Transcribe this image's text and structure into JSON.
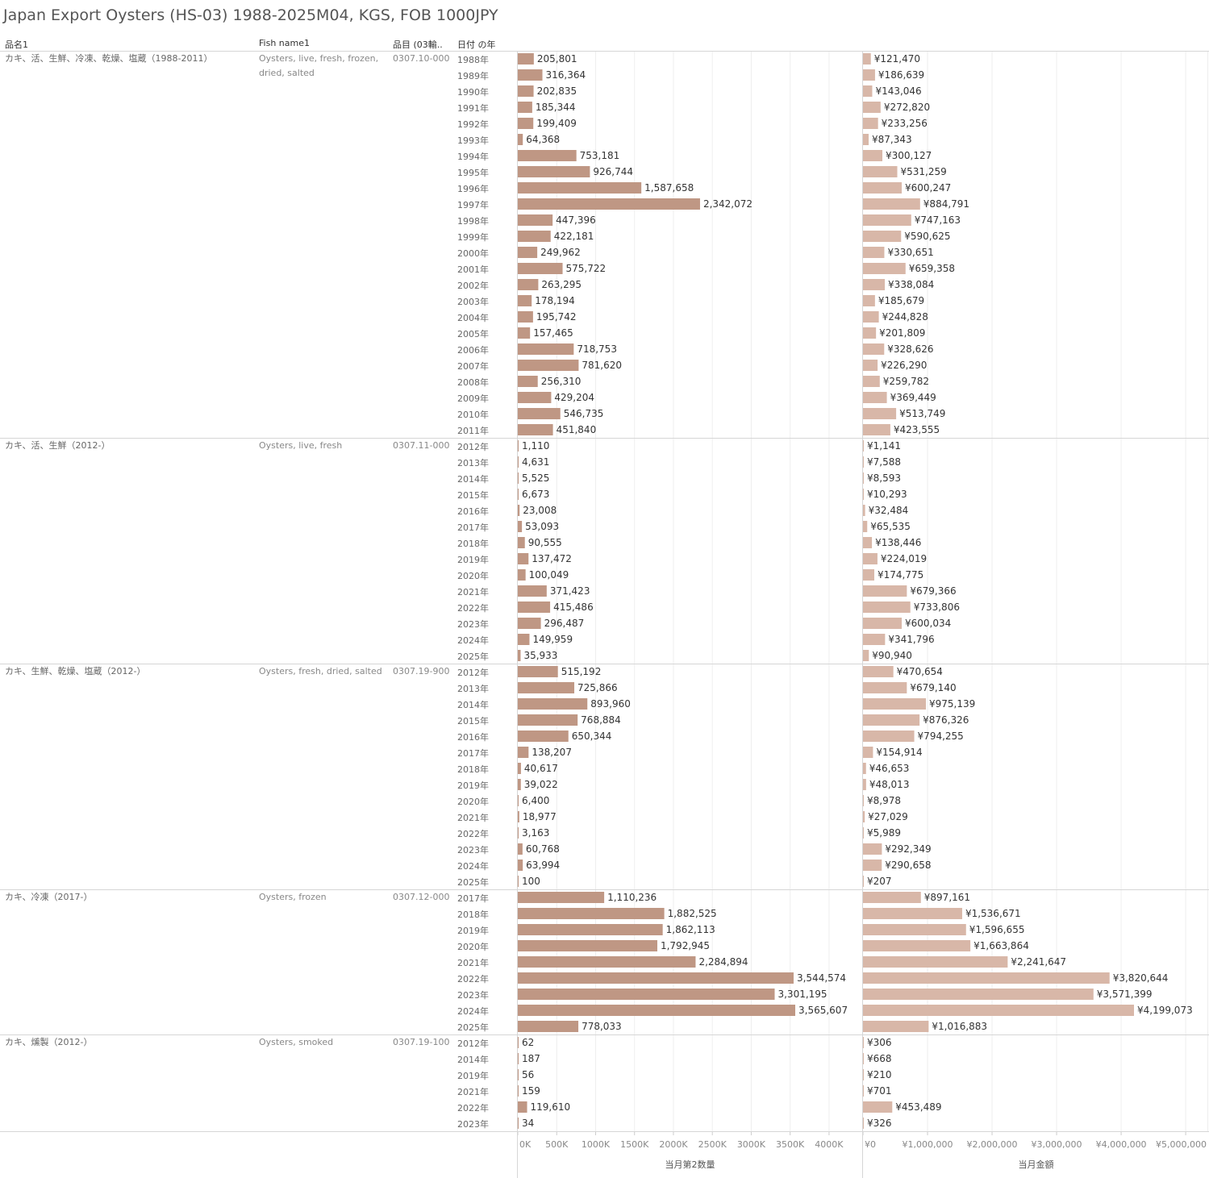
{
  "title": "Japan Export Oysters (HS-03) 1988-2025M04, KGS, FOB 1000JPY",
  "headers": {
    "col1": "品名1",
    "col2": "Fish name1",
    "col3": "品目 (03輸..",
    "col4": "日付 の年"
  },
  "colors": {
    "qty_bar": "#bf9784",
    "val_bar": "#d8b7a8",
    "grid": "#eeeeee",
    "divider": "#d6d6d6"
  },
  "chart_data": {
    "type": "bar",
    "orientation": "horizontal",
    "measures": [
      {
        "name": "当月第2数量",
        "axis_ticks": [
          "0K",
          "500K",
          "1000K",
          "1500K",
          "2000K",
          "2500K",
          "3000K",
          "3500K",
          "4000K"
        ],
        "xlim": [
          0,
          4500000
        ]
      },
      {
        "name": "当月金額",
        "axis_ticks": [
          "¥0",
          "¥1,000,000",
          "¥2,000,000",
          "¥3,000,000",
          "¥4,000,000",
          "¥5,000,000"
        ],
        "xlim": [
          0,
          5100000
        ]
      }
    ],
    "groups": [
      {
        "name_jp": "カキ、活、生鮮、冷凍、乾燥、塩蔵（1988-2011）",
        "name_en": "Oysters, live, fresh, frozen, dried, salted",
        "code": "0307.10-000",
        "rows": [
          {
            "year": "1988年",
            "qty": 205801,
            "qty_label": "205,801",
            "val": 121470,
            "val_label": "¥121,470"
          },
          {
            "year": "1989年",
            "qty": 316364,
            "qty_label": "316,364",
            "val": 186639,
            "val_label": "¥186,639"
          },
          {
            "year": "1990年",
            "qty": 202835,
            "qty_label": "202,835",
            "val": 143046,
            "val_label": "¥143,046"
          },
          {
            "year": "1991年",
            "qty": 185344,
            "qty_label": "185,344",
            "val": 272820,
            "val_label": "¥272,820"
          },
          {
            "year": "1992年",
            "qty": 199409,
            "qty_label": "199,409",
            "val": 233256,
            "val_label": "¥233,256"
          },
          {
            "year": "1993年",
            "qty": 64368,
            "qty_label": "64,368",
            "val": 87343,
            "val_label": "¥87,343"
          },
          {
            "year": "1994年",
            "qty": 753181,
            "qty_label": "753,181",
            "val": 300127,
            "val_label": "¥300,127"
          },
          {
            "year": "1995年",
            "qty": 926744,
            "qty_label": "926,744",
            "val": 531259,
            "val_label": "¥531,259"
          },
          {
            "year": "1996年",
            "qty": 1587658,
            "qty_label": "1,587,658",
            "val": 600247,
            "val_label": "¥600,247"
          },
          {
            "year": "1997年",
            "qty": 2342072,
            "qty_label": "2,342,072",
            "val": 884791,
            "val_label": "¥884,791"
          },
          {
            "year": "1998年",
            "qty": 447396,
            "qty_label": "447,396",
            "val": 747163,
            "val_label": "¥747,163"
          },
          {
            "year": "1999年",
            "qty": 422181,
            "qty_label": "422,181",
            "val": 590625,
            "val_label": "¥590,625"
          },
          {
            "year": "2000年",
            "qty": 249962,
            "qty_label": "249,962",
            "val": 330651,
            "val_label": "¥330,651"
          },
          {
            "year": "2001年",
            "qty": 575722,
            "qty_label": "575,722",
            "val": 659358,
            "val_label": "¥659,358"
          },
          {
            "year": "2002年",
            "qty": 263295,
            "qty_label": "263,295",
            "val": 338084,
            "val_label": "¥338,084"
          },
          {
            "year": "2003年",
            "qty": 178194,
            "qty_label": "178,194",
            "val": 185679,
            "val_label": "¥185,679"
          },
          {
            "year": "2004年",
            "qty": 195742,
            "qty_label": "195,742",
            "val": 244828,
            "val_label": "¥244,828"
          },
          {
            "year": "2005年",
            "qty": 157465,
            "qty_label": "157,465",
            "val": 201809,
            "val_label": "¥201,809"
          },
          {
            "year": "2006年",
            "qty": 718753,
            "qty_label": "718,753",
            "val": 328626,
            "val_label": "¥328,626"
          },
          {
            "year": "2007年",
            "qty": 781620,
            "qty_label": "781,620",
            "val": 226290,
            "val_label": "¥226,290"
          },
          {
            "year": "2008年",
            "qty": 256310,
            "qty_label": "256,310",
            "val": 259782,
            "val_label": "¥259,782"
          },
          {
            "year": "2009年",
            "qty": 429204,
            "qty_label": "429,204",
            "val": 369449,
            "val_label": "¥369,449"
          },
          {
            "year": "2010年",
            "qty": 546735,
            "qty_label": "546,735",
            "val": 513749,
            "val_label": "¥513,749"
          },
          {
            "year": "2011年",
            "qty": 451840,
            "qty_label": "451,840",
            "val": 423555,
            "val_label": "¥423,555"
          }
        ]
      },
      {
        "name_jp": "カキ、活、生鮮（2012-）",
        "name_en": "Oysters, live, fresh",
        "code": "0307.11-000",
        "rows": [
          {
            "year": "2012年",
            "qty": 1110,
            "qty_label": "1,110",
            "val": 1141,
            "val_label": "¥1,141"
          },
          {
            "year": "2013年",
            "qty": 4631,
            "qty_label": "4,631",
            "val": 7588,
            "val_label": "¥7,588"
          },
          {
            "year": "2014年",
            "qty": 5525,
            "qty_label": "5,525",
            "val": 8593,
            "val_label": "¥8,593"
          },
          {
            "year": "2015年",
            "qty": 6673,
            "qty_label": "6,673",
            "val": 10293,
            "val_label": "¥10,293"
          },
          {
            "year": "2016年",
            "qty": 23008,
            "qty_label": "23,008",
            "val": 32484,
            "val_label": "¥32,484"
          },
          {
            "year": "2017年",
            "qty": 53093,
            "qty_label": "53,093",
            "val": 65535,
            "val_label": "¥65,535"
          },
          {
            "year": "2018年",
            "qty": 90555,
            "qty_label": "90,555",
            "val": 138446,
            "val_label": "¥138,446"
          },
          {
            "year": "2019年",
            "qty": 137472,
            "qty_label": "137,472",
            "val": 224019,
            "val_label": "¥224,019"
          },
          {
            "year": "2020年",
            "qty": 100049,
            "qty_label": "100,049",
            "val": 174775,
            "val_label": "¥174,775"
          },
          {
            "year": "2021年",
            "qty": 371423,
            "qty_label": "371,423",
            "val": 679366,
            "val_label": "¥679,366"
          },
          {
            "year": "2022年",
            "qty": 415486,
            "qty_label": "415,486",
            "val": 733806,
            "val_label": "¥733,806"
          },
          {
            "year": "2023年",
            "qty": 296487,
            "qty_label": "296,487",
            "val": 600034,
            "val_label": "¥600,034"
          },
          {
            "year": "2024年",
            "qty": 149959,
            "qty_label": "149,959",
            "val": 341796,
            "val_label": "¥341,796"
          },
          {
            "year": "2025年",
            "qty": 35933,
            "qty_label": "35,933",
            "val": 90940,
            "val_label": "¥90,940"
          }
        ]
      },
      {
        "name_jp": "カキ、生鮮、乾燥、塩蔵（2012-）",
        "name_en": "Oysters, fresh, dried, salted",
        "code": "0307.19-900",
        "rows": [
          {
            "year": "2012年",
            "qty": 515192,
            "qty_label": "515,192",
            "val": 470654,
            "val_label": "¥470,654"
          },
          {
            "year": "2013年",
            "qty": 725866,
            "qty_label": "725,866",
            "val": 679140,
            "val_label": "¥679,140"
          },
          {
            "year": "2014年",
            "qty": 893960,
            "qty_label": "893,960",
            "val": 975139,
            "val_label": "¥975,139"
          },
          {
            "year": "2015年",
            "qty": 768884,
            "qty_label": "768,884",
            "val": 876326,
            "val_label": "¥876,326"
          },
          {
            "year": "2016年",
            "qty": 650344,
            "qty_label": "650,344",
            "val": 794255,
            "val_label": "¥794,255"
          },
          {
            "year": "2017年",
            "qty": 138207,
            "qty_label": "138,207",
            "val": 154914,
            "val_label": "¥154,914"
          },
          {
            "year": "2018年",
            "qty": 40617,
            "qty_label": "40,617",
            "val": 46653,
            "val_label": "¥46,653"
          },
          {
            "year": "2019年",
            "qty": 39022,
            "qty_label": "39,022",
            "val": 48013,
            "val_label": "¥48,013"
          },
          {
            "year": "2020年",
            "qty": 6400,
            "qty_label": "6,400",
            "val": 8978,
            "val_label": "¥8,978"
          },
          {
            "year": "2021年",
            "qty": 18977,
            "qty_label": "18,977",
            "val": 27029,
            "val_label": "¥27,029"
          },
          {
            "year": "2022年",
            "qty": 3163,
            "qty_label": "3,163",
            "val": 5989,
            "val_label": "¥5,989"
          },
          {
            "year": "2023年",
            "qty": 60768,
            "qty_label": "60,768",
            "val": 292349,
            "val_label": "¥292,349"
          },
          {
            "year": "2024年",
            "qty": 63994,
            "qty_label": "63,994",
            "val": 290658,
            "val_label": "¥290,658"
          },
          {
            "year": "2025年",
            "qty": 100,
            "qty_label": "100",
            "val": 207,
            "val_label": "¥207"
          }
        ]
      },
      {
        "name_jp": "カキ、冷凍（2017-）",
        "name_en": "Oysters, frozen",
        "code": "0307.12-000",
        "rows": [
          {
            "year": "2017年",
            "qty": 1110236,
            "qty_label": "1,110,236",
            "val": 897161,
            "val_label": "¥897,161"
          },
          {
            "year": "2018年",
            "qty": 1882525,
            "qty_label": "1,882,525",
            "val": 1536671,
            "val_label": "¥1,536,671"
          },
          {
            "year": "2019年",
            "qty": 1862113,
            "qty_label": "1,862,113",
            "val": 1596655,
            "val_label": "¥1,596,655"
          },
          {
            "year": "2020年",
            "qty": 1792945,
            "qty_label": "1,792,945",
            "val": 1663864,
            "val_label": "¥1,663,864"
          },
          {
            "year": "2021年",
            "qty": 2284894,
            "qty_label": "2,284,894",
            "val": 2241647,
            "val_label": "¥2,241,647"
          },
          {
            "year": "2022年",
            "qty": 3544574,
            "qty_label": "3,544,574",
            "val": 3820644,
            "val_label": "¥3,820,644"
          },
          {
            "year": "2023年",
            "qty": 3301195,
            "qty_label": "3,301,195",
            "val": 3571399,
            "val_label": "¥3,571,399"
          },
          {
            "year": "2024年",
            "qty": 3565607,
            "qty_label": "3,565,607",
            "val": 4199073,
            "val_label": "¥4,199,073"
          },
          {
            "year": "2025年",
            "qty": 778033,
            "qty_label": "778,033",
            "val": 1016883,
            "val_label": "¥1,016,883"
          }
        ]
      },
      {
        "name_jp": "カキ、燻製（2012-）",
        "name_en": "Oysters, smoked",
        "code": "0307.19-100",
        "rows": [
          {
            "year": "2012年",
            "qty": 62,
            "qty_label": "62",
            "val": 306,
            "val_label": "¥306"
          },
          {
            "year": "2014年",
            "qty": 187,
            "qty_label": "187",
            "val": 668,
            "val_label": "¥668"
          },
          {
            "year": "2019年",
            "qty": 56,
            "qty_label": "56",
            "val": 210,
            "val_label": "¥210"
          },
          {
            "year": "2021年",
            "qty": 159,
            "qty_label": "159",
            "val": 701,
            "val_label": "¥701"
          },
          {
            "year": "2022年",
            "qty": 119610,
            "qty_label": "119,610",
            "val": 453489,
            "val_label": "¥453,489"
          },
          {
            "year": "2023年",
            "qty": 34,
            "qty_label": "34",
            "val": 326,
            "val_label": "¥326"
          }
        ]
      }
    ]
  }
}
